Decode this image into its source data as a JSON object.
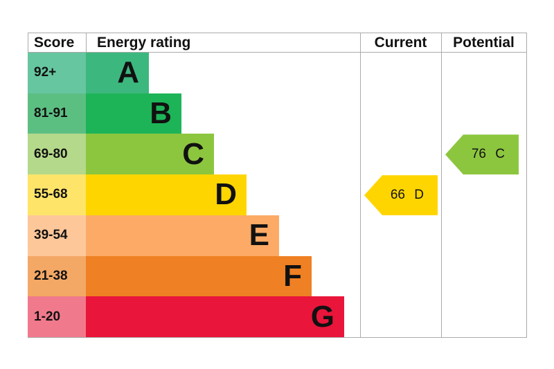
{
  "chart_data": {
    "type": "bar",
    "headers": {
      "score": "Score",
      "rating": "Energy rating",
      "current": "Current",
      "potential": "Potential"
    },
    "bands": [
      {
        "letter": "A",
        "range": "92+",
        "color": "#3cb87e",
        "score_color": "#66c6a0"
      },
      {
        "letter": "B",
        "range": "81-91",
        "color": "#1db458",
        "score_color": "#5cbf82"
      },
      {
        "letter": "C",
        "range": "69-80",
        "color": "#8cc63f",
        "score_color": "#b5d98a"
      },
      {
        "letter": "D",
        "range": "55-68",
        "color": "#ffd500",
        "score_color": "#ffe46a"
      },
      {
        "letter": "E",
        "range": "39-54",
        "color": "#fcaa65",
        "score_color": "#fdc79a"
      },
      {
        "letter": "F",
        "range": "21-38",
        "color": "#ef8023",
        "score_color": "#f4a865"
      },
      {
        "letter": "G",
        "range": "1-20",
        "color": "#e9153b",
        "score_color": "#f07a8c"
      }
    ],
    "current": {
      "value": 66,
      "band": "D",
      "label": "66 D",
      "color": "#ffd500"
    },
    "potential": {
      "value": 76,
      "band": "C",
      "label": "76 C",
      "color": "#8cc63f"
    }
  }
}
